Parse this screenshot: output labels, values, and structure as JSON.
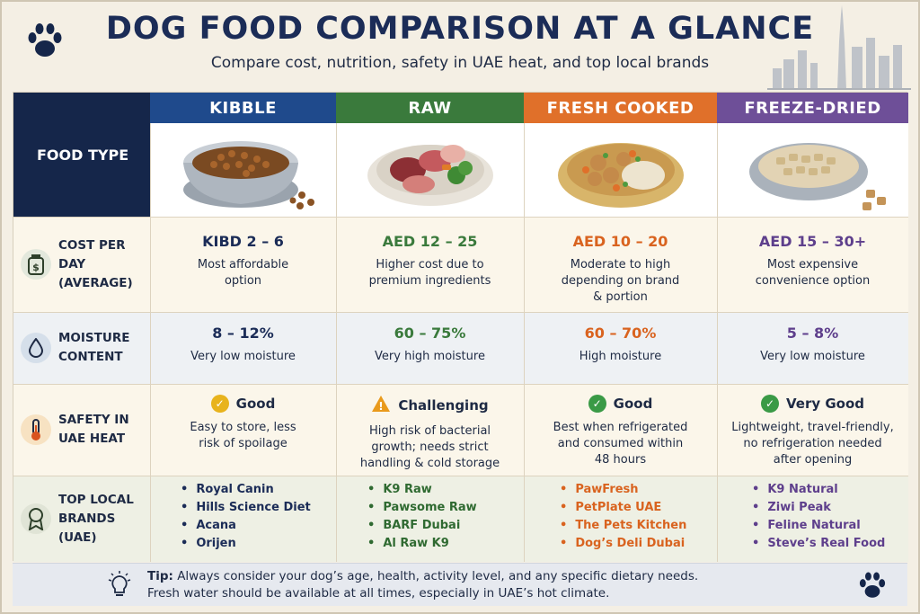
{
  "header": {
    "title": "DOG FOOD COMPARISON AT A GLANCE",
    "subtitle": "Compare cost, nutrition, safety in UAE heat, and top local brands"
  },
  "table": {
    "food_type_label": "FOOD TYPE",
    "columns": [
      {
        "name": "KIBBLE",
        "color": "#1f4a8c",
        "text_color": "#1b2c57"
      },
      {
        "name": "RAW",
        "color": "#3a7a3c",
        "text_color": "#3a7a3c"
      },
      {
        "name": "FRESH COOKED",
        "color": "#e0702a",
        "text_color": "#d9631f"
      },
      {
        "name": "FREEZE-DRIED",
        "color": "#6e4f98",
        "text_color": "#5e3f8c"
      }
    ],
    "rows": {
      "cost": {
        "label_line1": "COST PER DAY",
        "label_line2": "(AVERAGE)",
        "icon": "money-jar-icon",
        "values": [
          "KIBD 2 – 6",
          "AED 12 – 25",
          "AED 10 – 20",
          "AED 15 – 30+"
        ],
        "notes": [
          [
            "Most affordable",
            "option"
          ],
          [
            "Higher cost due to",
            "premium ingredients"
          ],
          [
            "Moderate to high",
            "depending on brand",
            "& portion"
          ],
          [
            "Most expensive",
            "convenience option"
          ]
        ]
      },
      "moisture": {
        "label_line1": "MOISTURE",
        "label_line2": "CONTENT",
        "icon": "water-drop-icon",
        "values": [
          "8 – 12%",
          "60 – 75%",
          "60 – 70%",
          "5 – 8%"
        ],
        "notes": [
          "Very low moisture",
          "Very high moisture",
          "High moisture",
          "Very low moisture"
        ]
      },
      "safety": {
        "label_line1": "SAFETY IN",
        "label_line2": "UAE HEAT",
        "icon": "thermometer-icon",
        "ratings": [
          "Good",
          "Challenging",
          "Good",
          "Very Good"
        ],
        "rating_icons": [
          "check-circle-icon",
          "warning-triangle-icon",
          "check-circle-icon",
          "check-circle-icon"
        ],
        "notes": [
          [
            "Easy to store, less",
            "risk of spoilage"
          ],
          [
            "High risk of bacterial",
            "growth; needs strict",
            "handling & cold storage"
          ],
          [
            "Best when refrigerated",
            "and consumed within",
            "48 hours"
          ],
          [
            "Lightweight, travel-friendly,",
            "no refrigeration needed",
            "after opening"
          ]
        ]
      },
      "brands": {
        "label_line1": "TOP LOCAL BRANDS",
        "label_line2": "(UAE)",
        "icon": "award-ribbon-icon",
        "lists": [
          [
            "Royal Canin",
            "Hills Science Diet",
            "Acana",
            "Orijen"
          ],
          [
            "K9 Raw",
            "Pawsome Raw",
            "BARF Dubai",
            "Al Raw K9"
          ],
          [
            "PawFresh",
            "PetPlate UAE",
            "The Pets Kitchen",
            "Dog’s Deli Dubai"
          ],
          [
            "K9 Natural",
            "Ziwi Peak",
            "Feline Natural",
            "Steve’s Real Food"
          ]
        ]
      }
    }
  },
  "tip": {
    "label": "Tip:",
    "line1": " Always consider your dog’s age, health, activity level, and any specific dietary needs.",
    "line2": "Fresh water should be available at all times, especially in UAE’s hot climate.",
    "icon": "lightbulb-icon"
  },
  "decor": {
    "paw_icon": "paw-print-icon",
    "skyline": "dubai-skyline-icon"
  }
}
